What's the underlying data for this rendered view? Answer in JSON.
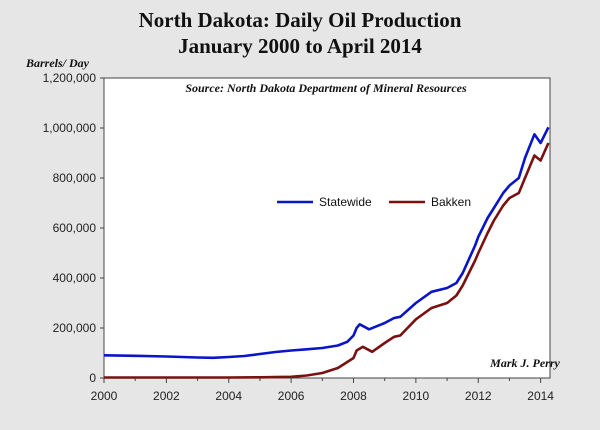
{
  "chart_data": {
    "type": "line",
    "title": "North Dakota: Daily Oil Production",
    "subtitle": "January 2000 to April 2014",
    "source": "Source: North Dakota Department of Mineral Resources",
    "ylabel": "Barrels/ Day",
    "xlabel": "",
    "xlim": [
      2000,
      2014.3
    ],
    "ylim": [
      0,
      1200000
    ],
    "y_ticks": [
      0,
      200000,
      400000,
      600000,
      800000,
      1000000,
      1200000
    ],
    "y_tick_labels": [
      "0",
      "200,000",
      "400,000",
      "600,000",
      "800,000",
      "1,000,000",
      "1,200,000"
    ],
    "x_ticks": [
      2000,
      2002,
      2004,
      2006,
      2008,
      2010,
      2012,
      2014
    ],
    "x_tick_labels": [
      "2000",
      "2002",
      "2004",
      "2006",
      "2008",
      "2010",
      "2012",
      "2014"
    ],
    "grid": false,
    "legend_position": "center",
    "series": [
      {
        "name": "Statewide",
        "color": "#0a14c8",
        "x": [
          2000,
          2001,
          2002,
          2003,
          2003.5,
          2004,
          2004.5,
          2005,
          2005.5,
          2006,
          2006.5,
          2007,
          2007.5,
          2007.8,
          2008,
          2008.1,
          2008.2,
          2008.5,
          2009,
          2009.3,
          2009.5,
          2010,
          2010.5,
          2011,
          2011.3,
          2011.5,
          2011.9,
          2012,
          2012.3,
          2012.5,
          2012.8,
          2013,
          2013.3,
          2013.5,
          2013.8,
          2014,
          2014.25
        ],
        "values": [
          91000,
          89000,
          86000,
          82000,
          81000,
          84000,
          88000,
          96000,
          104000,
          110000,
          115000,
          120000,
          130000,
          145000,
          170000,
          200000,
          215000,
          195000,
          220000,
          240000,
          245000,
          300000,
          345000,
          360000,
          380000,
          420000,
          530000,
          565000,
          640000,
          680000,
          740000,
          770000,
          800000,
          880000,
          975000,
          940000,
          1003000
        ]
      },
      {
        "name": "Bakken",
        "color": "#7a1010",
        "x": [
          2000,
          2002,
          2004,
          2005,
          2006,
          2006.5,
          2007,
          2007.5,
          2008,
          2008.1,
          2008.3,
          2008.6,
          2009,
          2009.3,
          2009.5,
          2010,
          2010.5,
          2011,
          2011.3,
          2011.5,
          2011.9,
          2012,
          2012.3,
          2012.5,
          2012.8,
          2013,
          2013.3,
          2013.5,
          2013.8,
          2014,
          2014.25
        ],
        "values": [
          2000,
          2000,
          2000,
          3000,
          5000,
          10000,
          20000,
          40000,
          80000,
          110000,
          125000,
          105000,
          140000,
          165000,
          170000,
          235000,
          280000,
          300000,
          330000,
          370000,
          470000,
          500000,
          580000,
          630000,
          690000,
          720000,
          740000,
          800000,
          890000,
          870000,
          940000
        ]
      }
    ],
    "annotation": "Mark J. Perry"
  }
}
